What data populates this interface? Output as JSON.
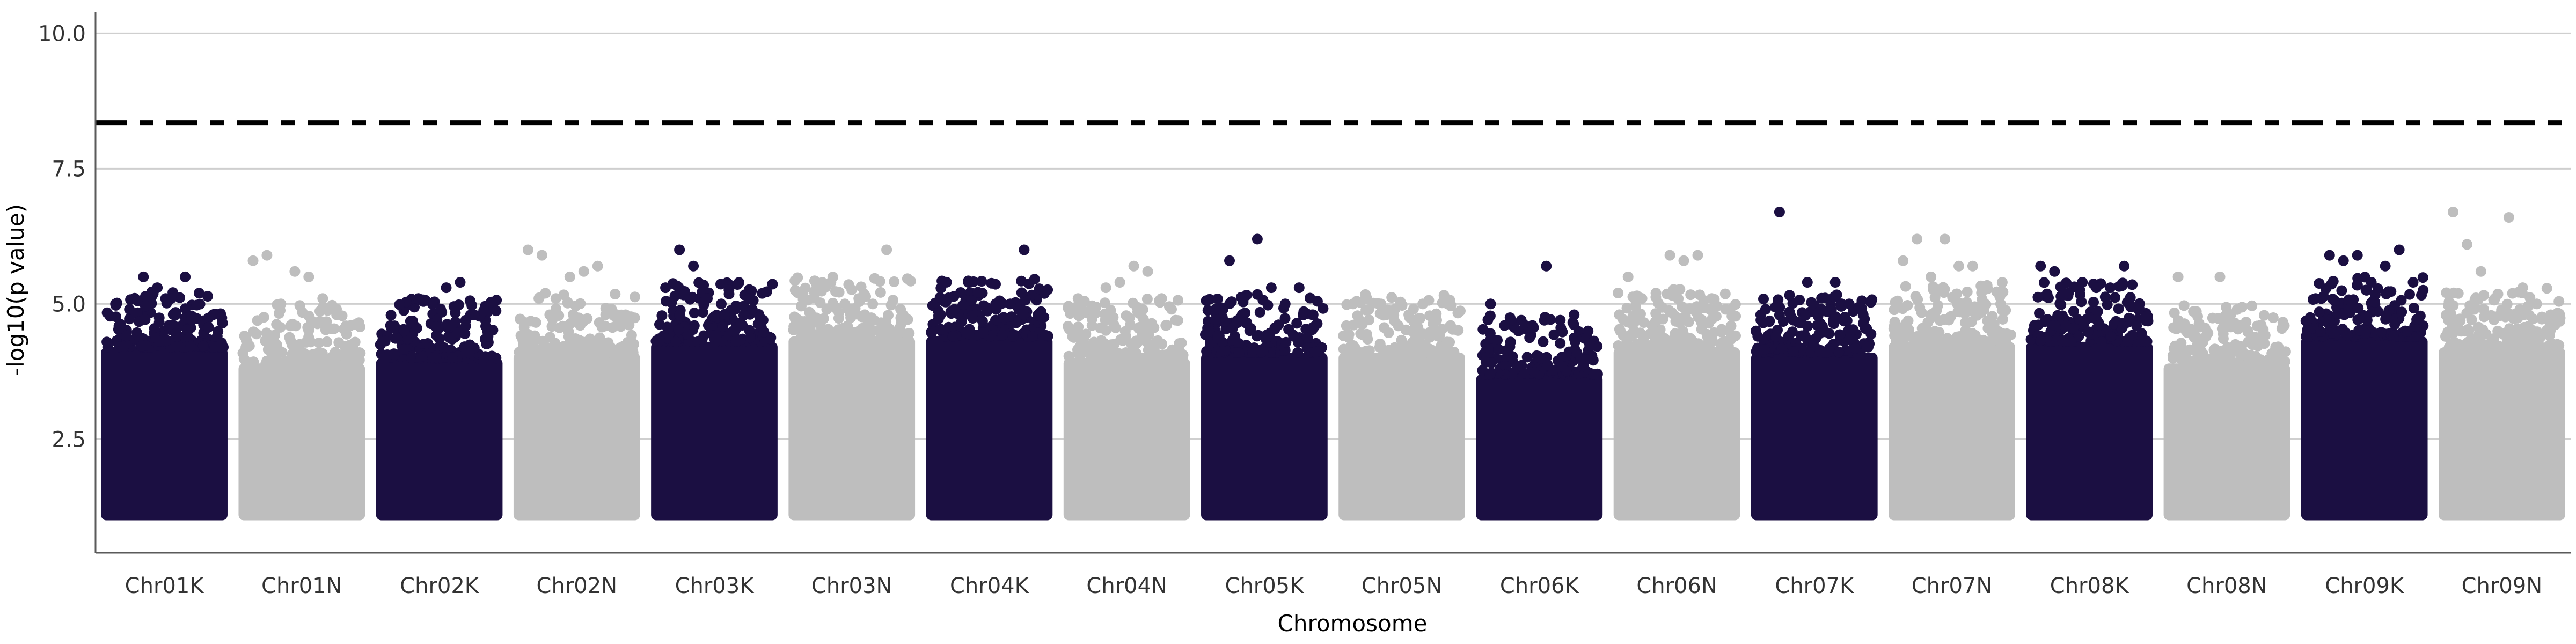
{
  "chart_data": {
    "type": "scatter",
    "title": "",
    "xlabel": "Chromosome",
    "ylabel": "-log10(p value)",
    "ylim": [
      0.4,
      10.4
    ],
    "yticks": [
      2.5,
      5.0,
      7.5,
      10.0
    ],
    "ytick_labels": [
      "2.5",
      "5.0",
      "7.5",
      "10.0"
    ],
    "grid": true,
    "threshold": 8.35,
    "baseline_min": 1.0,
    "colors": {
      "odd": "#1b0f42",
      "even": "#bebebe",
      "threshold": "#000000"
    },
    "chromosomes": [
      {
        "name": "Chr01K",
        "ceiling": 4.2,
        "top_points": [
          5.0,
          4.9,
          5.5,
          5.3,
          5.1,
          5.5,
          5.2,
          4.8
        ]
      },
      {
        "name": "Chr01N",
        "ceiling": 3.9,
        "top_points": [
          5.8,
          5.9,
          5.0,
          5.6,
          5.5,
          5.1,
          4.8,
          4.6
        ]
      },
      {
        "name": "Chr02K",
        "ceiling": 4.0,
        "top_points": [
          4.6,
          4.5,
          5.1,
          5.0,
          5.3,
          5.4,
          4.8,
          4.4
        ]
      },
      {
        "name": "Chr02N",
        "ceiling": 4.1,
        "top_points": [
          6.0,
          5.9,
          5.1,
          5.5,
          5.6,
          5.7,
          4.9,
          4.8
        ]
      },
      {
        "name": "Chr03K",
        "ceiling": 4.3,
        "top_points": [
          5.3,
          6.0,
          5.7,
          5.1,
          5.0,
          4.9,
          5.1,
          4.7
        ]
      },
      {
        "name": "Chr03N",
        "ceiling": 4.4,
        "top_points": [
          5.2,
          5.3,
          5.4,
          5.0,
          5.1,
          5.0,
          6.0,
          4.9
        ]
      },
      {
        "name": "Chr04K",
        "ceiling": 4.4,
        "top_points": [
          4.8,
          4.9,
          5.4,
          5.2,
          4.9,
          5.0,
          6.0,
          4.8
        ]
      },
      {
        "name": "Chr04N",
        "ceiling": 4.0,
        "top_points": [
          5.1,
          4.6,
          5.3,
          5.4,
          5.7,
          5.6,
          5.1,
          4.7
        ]
      },
      {
        "name": "Chr05K",
        "ceiling": 4.1,
        "top_points": [
          4.9,
          5.8,
          5.1,
          6.2,
          5.3,
          5.0,
          5.3,
          4.8
        ]
      },
      {
        "name": "Chr05N",
        "ceiling": 4.1,
        "top_points": [
          5.0,
          5.1,
          5.0,
          4.9,
          4.8,
          5.0,
          4.7,
          4.6
        ]
      },
      {
        "name": "Chr06K",
        "ceiling": 3.7,
        "top_points": [
          5.0,
          4.6,
          4.5,
          4.6,
          5.7,
          4.7,
          4.8,
          4.5
        ]
      },
      {
        "name": "Chr06N",
        "ceiling": 4.2,
        "top_points": [
          5.5,
          5.1,
          5.2,
          5.9,
          5.8,
          5.9,
          5.1,
          4.9
        ]
      },
      {
        "name": "Chr07K",
        "ceiling": 4.1,
        "top_points": [
          4.9,
          6.7,
          4.7,
          5.4,
          4.9,
          5.4,
          5.0,
          4.8
        ]
      },
      {
        "name": "Chr07N",
        "ceiling": 4.3,
        "top_points": [
          5.8,
          6.2,
          5.5,
          6.2,
          5.7,
          5.7,
          5.3,
          5.0
        ]
      },
      {
        "name": "Chr08K",
        "ceiling": 4.3,
        "top_points": [
          5.7,
          5.6,
          5.2,
          5.4,
          5.3,
          5.3,
          5.7,
          4.9
        ]
      },
      {
        "name": "Chr08N",
        "ceiling": 3.9,
        "top_points": [
          5.5,
          4.5,
          4.4,
          5.5,
          4.6,
          4.5,
          4.3,
          4.2
        ]
      },
      {
        "name": "Chr09K",
        "ceiling": 4.4,
        "top_points": [
          5.1,
          5.9,
          5.8,
          5.9,
          5.4,
          5.7,
          6.0,
          5.4
        ]
      },
      {
        "name": "Chr09N",
        "ceiling": 4.2,
        "top_points": [
          6.7,
          6.1,
          5.6,
          5.1,
          6.6,
          5.3,
          5.0,
          4.8
        ]
      }
    ]
  }
}
